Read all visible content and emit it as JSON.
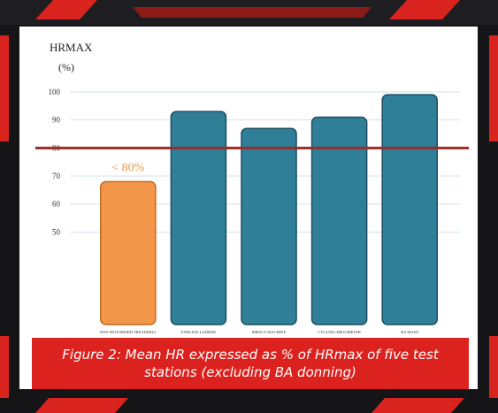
{
  "chart_data": {
    "type": "bar",
    "y_label": "HRMAX",
    "y_unit": "(%)",
    "categories": [
      "NON-MOTORISED TREADMILL",
      "ENDLESS LADDER",
      "IMPACT MACHINE",
      "CYCLING ERGOMETER",
      "BA MAZE"
    ],
    "values": [
      68,
      93,
      87,
      91,
      99
    ],
    "colors": [
      "#f2964a",
      "#2f7f98",
      "#2f7f98",
      "#2f7f98",
      "#2f7f98"
    ],
    "ylim": [
      17,
      100
    ],
    "yticks": [
      50,
      60,
      70,
      80,
      90,
      100
    ],
    "grid": true,
    "reference_line": {
      "value": 80,
      "color": "#9e2b25"
    },
    "annotation": "< 80%",
    "caption": "Figure 2: Mean HR expressed as % of HRmax of five test stations (excluding BA donning)"
  }
}
